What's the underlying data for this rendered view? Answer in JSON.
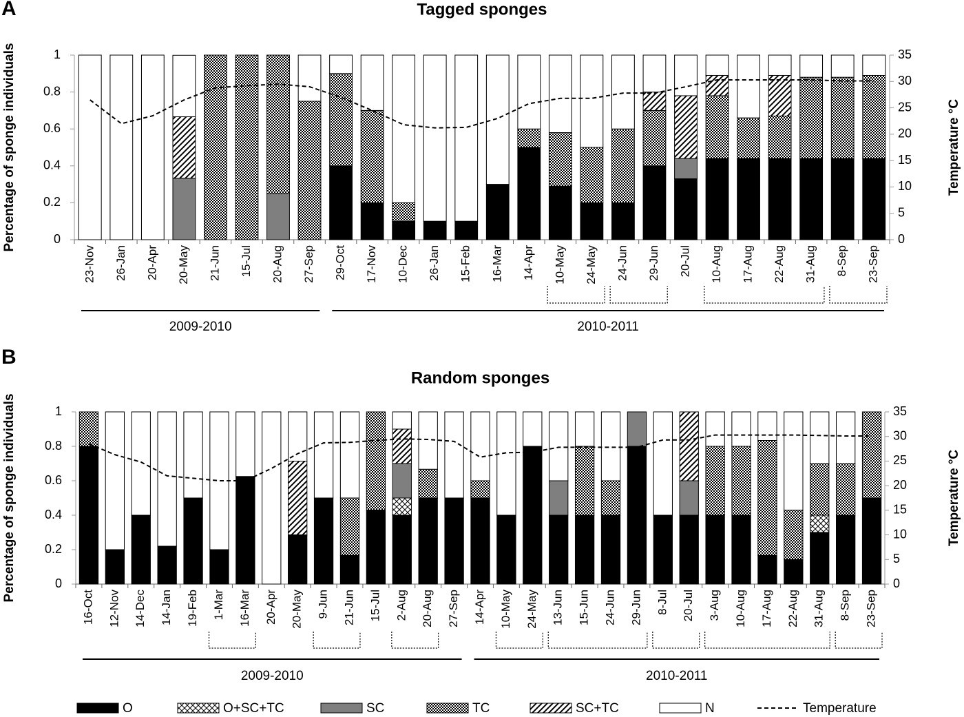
{
  "chart_data": [
    {
      "type": "bar",
      "stacked": true,
      "panel": "A",
      "title": "Tagged sponges",
      "ylabel": "Percentage of sponge individuals",
      "y2label": "Temperature °C",
      "categories": [
        "23-Nov",
        "26-Jan",
        "20-Apr",
        "20-May",
        "21-Jun",
        "15-Jul",
        "20-Aug",
        "27-Sep",
        "29-Oct",
        "17-Nov",
        "10-Dec",
        "26-Jan",
        "15-Feb",
        "16-Mar",
        "14-Apr",
        "10-May",
        "24-May",
        "24-Jun",
        "29-Jun",
        "20-Jul",
        "10-Aug",
        "17-Aug",
        "22-Aug",
        "31-Aug",
        "8-Sep",
        "23-Sep"
      ],
      "periods": [
        "2009-2010",
        "2010-2011"
      ],
      "ylim": [
        0,
        1
      ],
      "yticks": [
        0,
        0.2,
        0.4,
        0.6,
        0.8,
        1
      ],
      "y2lim": [
        0,
        35
      ],
      "y2ticks": [
        0,
        5,
        10,
        15,
        20,
        25,
        30,
        35
      ],
      "series": [
        {
          "name": "O",
          "color": "#000000",
          "values": [
            0,
            0,
            0,
            0,
            0,
            0,
            0,
            0,
            0.4,
            0.2,
            0.1,
            0.1,
            0.1,
            0.3,
            0.5,
            0.29,
            0.2,
            0.2,
            0.4,
            0.33,
            0.44,
            0.44,
            0.44,
            0.44,
            0.44,
            0.44
          ]
        },
        {
          "name": "O+SC+TC",
          "color": "#000000",
          "pattern": "crosshatch",
          "values": [
            0,
            0,
            0,
            0,
            0,
            0,
            0,
            0,
            0,
            0,
            0,
            0,
            0,
            0,
            0,
            0,
            0,
            0,
            0,
            0,
            0,
            0,
            0,
            0,
            0,
            0
          ]
        },
        {
          "name": "SC",
          "color": "#7f7f7f",
          "values": [
            0,
            0,
            0,
            0.333,
            0,
            0,
            0.25,
            0,
            0,
            0,
            0,
            0,
            0,
            0,
            0,
            0,
            0,
            0,
            0,
            0.11,
            0,
            0,
            0,
            0,
            0,
            0
          ]
        },
        {
          "name": "TC",
          "color": "#000000",
          "pattern": "checker",
          "values": [
            0,
            0,
            0,
            0,
            1,
            1,
            0.75,
            0.75,
            0.5,
            0.5,
            0.1,
            0,
            0,
            0,
            0.1,
            0.29,
            0.3,
            0.4,
            0.3,
            0,
            0.34,
            0.22,
            0.23,
            0.44,
            0.44,
            0.45
          ]
        },
        {
          "name": "SC+TC",
          "color": "#000000",
          "pattern": "hatch",
          "values": [
            0,
            0,
            0,
            0.333,
            0,
            0,
            0,
            0,
            0,
            0,
            0,
            0,
            0,
            0,
            0,
            0,
            0,
            0,
            0.1,
            0.34,
            0.11,
            0,
            0.22,
            0,
            0,
            0
          ]
        },
        {
          "name": "N",
          "color": "#ffffff",
          "values": [
            1,
            1,
            1,
            0.333,
            0,
            0,
            0,
            0.25,
            0.1,
            0.3,
            0.8,
            0.9,
            0.9,
            0.7,
            0.4,
            0.42,
            0.5,
            0.4,
            0.2,
            0.22,
            0.11,
            0.34,
            0.11,
            0.12,
            0.12,
            0.11
          ]
        },
        {
          "name": "Temperature",
          "type": "line",
          "axis": "y2",
          "color": "#000000",
          "dashed": true,
          "values": [
            26.5,
            22,
            23.5,
            26.5,
            28.8,
            29.2,
            29.5,
            29,
            27,
            24.5,
            21.8,
            21.2,
            21.3,
            23,
            25.8,
            26.8,
            26.8,
            27.8,
            27.8,
            29,
            30.3,
            30.3,
            30.3,
            30.3,
            30.1,
            30.1
          ]
        }
      ]
    },
    {
      "type": "bar",
      "stacked": true,
      "panel": "B",
      "title": "Random sponges",
      "ylabel": "Percentage of sponge individuals",
      "y2label": "Temperature °C",
      "categories": [
        "16-Oct",
        "12-Nov",
        "14-Dec",
        "14-Jan",
        "19-Feb",
        "1-Mar",
        "16-Mar",
        "20-Apr",
        "20-May",
        "9-Jun",
        "21-Jun",
        "15-Jul",
        "2-Aug",
        "20-Aug",
        "27-Sep",
        "14-Apr",
        "10-May",
        "24-May",
        "13-Jun",
        "15-Jun",
        "24-Jun",
        "29-Jun",
        "8-Jul",
        "20-Jul",
        "3-Aug",
        "10-Aug",
        "17-Aug",
        "22-Aug",
        "31-Aug",
        "8-Sep",
        "23-Sep"
      ],
      "periods": [
        "2009-2010",
        "2010-2011"
      ],
      "ylim": [
        0,
        1
      ],
      "yticks": [
        0,
        0.2,
        0.4,
        0.6,
        0.8,
        1
      ],
      "y2lim": [
        0,
        35
      ],
      "y2ticks": [
        0,
        5,
        10,
        15,
        20,
        25,
        30,
        35
      ],
      "series": [
        {
          "name": "O",
          "color": "#000000",
          "values": [
            0.8,
            0.2,
            0.4,
            0.22,
            0.5,
            0.2,
            0.625,
            0,
            0.286,
            0.5,
            0.167,
            0.43,
            0.4,
            0.5,
            0.5,
            0.5,
            0.4,
            0.8,
            0.4,
            0.4,
            0.4,
            0.8,
            0.4,
            0.4,
            0.4,
            0.4,
            0.167,
            0.143,
            0.3,
            0.4,
            0.5
          ]
        },
        {
          "name": "O+SC+TC",
          "color": "#000000",
          "pattern": "crosshatch",
          "values": [
            0,
            0,
            0,
            0,
            0,
            0,
            0,
            0,
            0,
            0,
            0,
            0,
            0.1,
            0,
            0,
            0,
            0,
            0,
            0,
            0,
            0,
            0,
            0,
            0,
            0,
            0,
            0,
            0,
            0.1,
            0,
            0
          ]
        },
        {
          "name": "SC",
          "color": "#7f7f7f",
          "values": [
            0,
            0,
            0,
            0,
            0,
            0,
            0,
            0,
            0,
            0,
            0,
            0,
            0.2,
            0,
            0,
            0,
            0,
            0,
            0.2,
            0,
            0,
            0.2,
            0,
            0.2,
            0,
            0,
            0,
            0,
            0,
            0,
            0
          ]
        },
        {
          "name": "TC",
          "color": "#000000",
          "pattern": "checker",
          "values": [
            0.2,
            0,
            0,
            0,
            0,
            0,
            0,
            0,
            0,
            0,
            0.333,
            0.57,
            0,
            0.167,
            0,
            0.1,
            0,
            0,
            0,
            0.4,
            0.2,
            0,
            0,
            0,
            0.4,
            0.4,
            0.667,
            0.286,
            0.3,
            0.3,
            0.5
          ]
        },
        {
          "name": "SC+TC",
          "color": "#000000",
          "pattern": "hatch",
          "values": [
            0,
            0,
            0,
            0,
            0,
            0,
            0,
            0,
            0.428,
            0,
            0,
            0,
            0.2,
            0,
            0,
            0,
            0,
            0,
            0,
            0,
            0,
            0,
            0,
            0.4,
            0,
            0,
            0,
            0,
            0,
            0,
            0
          ]
        },
        {
          "name": "N",
          "color": "#ffffff",
          "values": [
            0,
            0.8,
            0.6,
            0.78,
            0.5,
            0.8,
            0.375,
            1,
            0.286,
            0.5,
            0.5,
            0,
            0.1,
            0.333,
            0.5,
            0.4,
            0.6,
            0.2,
            0.4,
            0.2,
            0.4,
            0,
            0.6,
            0,
            0.2,
            0.2,
            0.166,
            0.571,
            0.3,
            0.3,
            0
          ]
        },
        {
          "name": "Temperature",
          "type": "line",
          "axis": "y2",
          "color": "#000000",
          "dashed": true,
          "values": [
            28.5,
            26.3,
            24.8,
            22,
            21.5,
            21,
            21,
            23.5,
            26.5,
            28.7,
            28.8,
            29.2,
            29.5,
            29.4,
            29,
            25.8,
            26.7,
            26.8,
            27.8,
            27.8,
            27.8,
            27.8,
            29.3,
            29.3,
            30.3,
            30.3,
            30.3,
            30.3,
            30.2,
            30.1,
            30.1
          ]
        }
      ]
    }
  ]
}
